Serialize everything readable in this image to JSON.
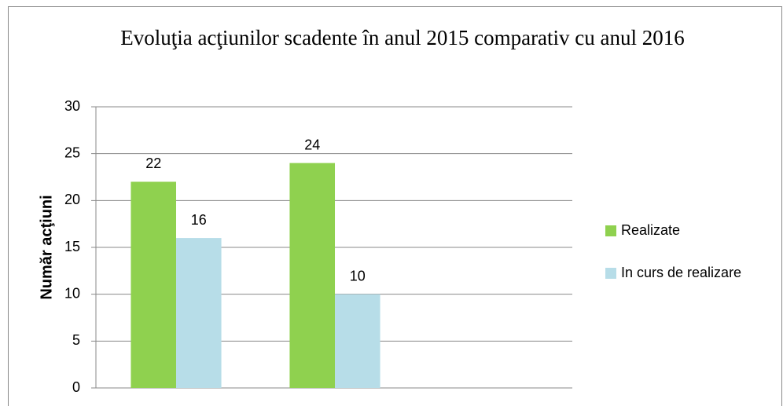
{
  "chart_data": {
    "type": "bar",
    "title": "Evoluţia acţiunilor  scadente în anul 2015 comparativ cu anul 2016",
    "y_label": "Număr acţiuni",
    "categories": [
      null,
      null,
      null
    ],
    "series": [
      {
        "name": "Realizate",
        "color": "#8fd14f",
        "values": [
          22,
          24,
          null
        ]
      },
      {
        "name": "In curs de realizare",
        "color": "#b7dde8",
        "values": [
          16,
          10,
          null
        ]
      }
    ],
    "ylim": [
      0,
      30
    ],
    "yticks": [
      0,
      5,
      10,
      15,
      20,
      25,
      30
    ],
    "grid": true,
    "legend": "right"
  }
}
